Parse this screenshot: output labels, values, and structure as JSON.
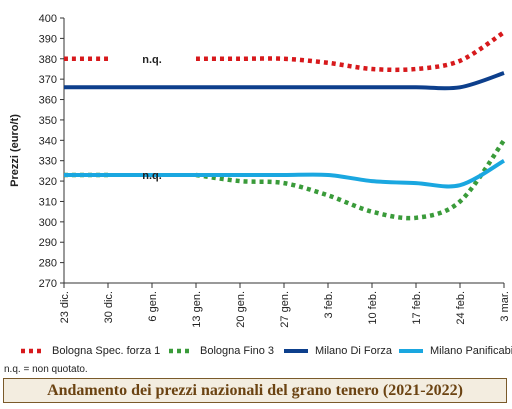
{
  "chart_data": {
    "type": "line",
    "title": "Andamento dei prezzi nazionali del grano tenero (2021-2022)",
    "ylabel": "Prezzi (euro/t)",
    "xlabel": "",
    "ylim": [
      270,
      400
    ],
    "yticks": [
      270,
      280,
      290,
      300,
      310,
      320,
      330,
      340,
      350,
      360,
      370,
      380,
      390,
      400
    ],
    "categories": [
      "23 dic.",
      "30 dic.",
      "6 gen.",
      "13 gen.",
      "20 gen.",
      "27 gen.",
      "3 feb.",
      "10 feb.",
      "17 feb.",
      "24 feb.",
      "3 mar."
    ],
    "grid": false,
    "legend_position": "bottom",
    "annotations": [
      {
        "text": "n.q.",
        "x": "6 gen.",
        "y": 380
      },
      {
        "text": "n.q.",
        "x": "6 gen.",
        "y": 323
      }
    ],
    "series": [
      {
        "name": "Bologna Spec. forza 1",
        "color": "#d7191c",
        "style": "dotted",
        "values": [
          380,
          380,
          null,
          380,
          380,
          380,
          378,
          375,
          375,
          379,
          393
        ]
      },
      {
        "name": "Bologna Fino 3",
        "color": "#3a9b3a",
        "style": "dotted",
        "values": [
          323,
          323,
          null,
          323,
          320,
          319,
          313,
          305,
          302,
          310,
          340
        ]
      },
      {
        "name": "Milano Di Forza",
        "color": "#0d3f8c",
        "style": "solid",
        "values": [
          366,
          366,
          366,
          366,
          366,
          366,
          366,
          366,
          366,
          366,
          373
        ]
      },
      {
        "name": "Milano Panificabile",
        "color": "#1aa7e0",
        "style": "solid",
        "values": [
          323,
          323,
          323,
          323,
          323,
          323,
          323,
          320,
          319,
          318,
          330
        ]
      }
    ],
    "footnote": "n.q. = non quotato."
  }
}
